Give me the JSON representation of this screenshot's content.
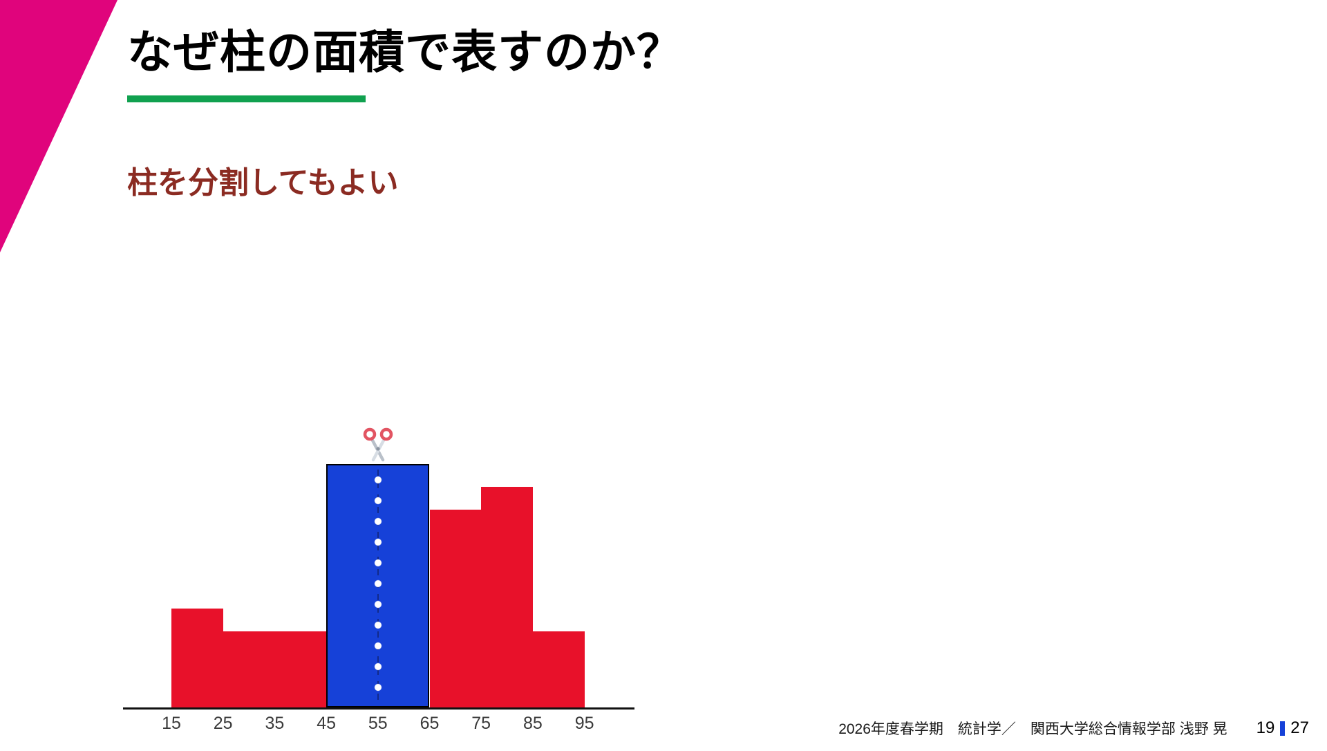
{
  "slide": {
    "title": "なぜ柱の面積で表すのか？",
    "subtitle": "柱を分割してもよい",
    "footer": {
      "course_info": "2026年度春学期　統計学／　関西大学総合情報学部 浅野 晃",
      "page_current": "19",
      "page_total": "27"
    },
    "colors": {
      "accent_magenta": "#e0047c",
      "accent_green": "#10a14f",
      "subtitle_red": "#8b2b22",
      "bar_red": "#e8112a",
      "bar_blue": "#1641d8",
      "page_divider_blue": "#1641d8"
    }
  },
  "chart_data": {
    "type": "bar",
    "subtype": "histogram",
    "title": "",
    "xlabel": "",
    "ylabel": "",
    "x_ticks": [
      15,
      25,
      35,
      45,
      55,
      65,
      75,
      85,
      95
    ],
    "x_range": [
      15,
      95
    ],
    "ylim": [
      0,
      3.6
    ],
    "grid": false,
    "legend": false,
    "bins": [
      {
        "from": 15,
        "to": 25,
        "density": 1.3,
        "color": "red"
      },
      {
        "from": 25,
        "to": 35,
        "density": 1.0,
        "color": "red"
      },
      {
        "from": 35,
        "to": 45,
        "density": 1.0,
        "color": "red"
      },
      {
        "from": 45,
        "to": 65,
        "density": 3.2,
        "color": "blue",
        "cut_line_at": 55,
        "cut_marker": "scissors"
      },
      {
        "from": 65,
        "to": 75,
        "density": 2.6,
        "color": "red"
      },
      {
        "from": 75,
        "to": 85,
        "density": 2.9,
        "color": "red"
      },
      {
        "from": 85,
        "to": 95,
        "density": 1.0,
        "color": "red"
      }
    ]
  }
}
